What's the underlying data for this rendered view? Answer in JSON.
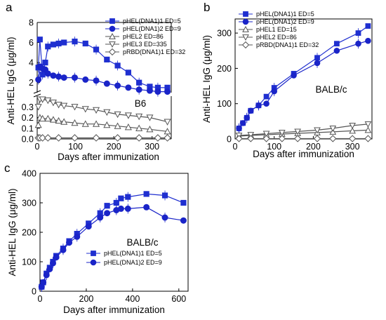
{
  "chart_data": [
    {
      "panel": "a",
      "type": "line",
      "xlabel": "Days after immunization",
      "ylabel": "Anti-HEL IgG (μg/ml)",
      "annotation": "B6",
      "xlim": [
        0,
        350
      ],
      "x_ticks": [
        0,
        100,
        200,
        300
      ],
      "broken_y_axis": true,
      "y_upper": {
        "lim": [
          1,
          8
        ],
        "ticks": [
          2,
          4,
          6,
          8
        ]
      },
      "y_lower": {
        "lim": [
          0,
          0.4
        ],
        "ticks": [
          0.0,
          0.1,
          0.2,
          0.3
        ]
      },
      "legend_position": "top-right",
      "series": [
        {
          "name": "pHEL(DNA1)1 ED=5",
          "marker": "filled-square",
          "segment": "upper",
          "x": [
            3,
            7,
            14,
            21,
            28,
            42,
            56,
            70,
            98,
            126,
            154,
            182,
            210,
            238,
            266,
            294,
            315,
            340
          ],
          "y": [
            3.5,
            6.3,
            2.8,
            4.0,
            5.6,
            5.8,
            5.9,
            6.0,
            6.1,
            5.9,
            5.3,
            4.3,
            3.7,
            3.0,
            2.0,
            1.6,
            1.5,
            1.5
          ]
        },
        {
          "name": "pHEL(DNA1)2 ED=9",
          "marker": "filled-circle",
          "segment": "upper",
          "x": [
            3,
            7,
            14,
            21,
            28,
            42,
            56,
            70,
            98,
            126,
            154,
            182,
            210,
            238,
            266,
            294,
            315,
            340
          ],
          "y": [
            2.3,
            3.6,
            3.4,
            3.3,
            2.9,
            2.7,
            2.6,
            2.5,
            2.5,
            2.3,
            2.2,
            1.9,
            1.7,
            1.5,
            1.3,
            1.2,
            1.1,
            1.1
          ]
        },
        {
          "name": "pHEL2 ED=86",
          "marker": "open-triangle",
          "segment": "lower",
          "x": [
            3,
            7,
            14,
            28,
            42,
            56,
            70,
            98,
            126,
            154,
            182,
            210,
            238,
            266,
            294,
            340
          ],
          "y": [
            0.13,
            0.2,
            0.19,
            0.19,
            0.18,
            0.17,
            0.16,
            0.15,
            0.14,
            0.14,
            0.13,
            0.12,
            0.11,
            0.1,
            0.09,
            0.07
          ]
        },
        {
          "name": "pHEL3 ED=335",
          "marker": "open-triangle-down",
          "segment": "lower",
          "x": [
            3,
            7,
            14,
            28,
            42,
            56,
            70,
            98,
            126,
            154,
            182,
            210,
            238,
            266,
            294,
            340
          ],
          "y": [
            0.3,
            0.37,
            0.37,
            0.36,
            0.34,
            0.32,
            0.31,
            0.3,
            0.28,
            0.27,
            0.25,
            0.23,
            0.22,
            0.21,
            0.2,
            0.16
          ]
        },
        {
          "name": "pRBD(DNA1)1 ED=32",
          "marker": "open-diamond",
          "segment": "lower",
          "x": [
            3,
            7,
            14,
            28,
            56,
            98,
            154,
            210,
            266,
            315,
            340
          ],
          "y": [
            0.01,
            0.01,
            0.01,
            0.01,
            0.01,
            0.01,
            0.01,
            0.01,
            0.01,
            0.01,
            0.01
          ]
        }
      ]
    },
    {
      "panel": "b",
      "type": "line",
      "xlabel": "Days after immunization",
      "ylabel": "Anti-HEL IgG (μg/ml)",
      "annotation": "BALB/c",
      "xlim": [
        0,
        350
      ],
      "x_ticks": [
        0,
        100,
        200,
        300
      ],
      "ylim": [
        0,
        340
      ],
      "y_ticks": [
        0,
        100,
        200,
        300
      ],
      "legend_position": "top-left",
      "series": [
        {
          "name": "pHEL(DNA1)1 ED=5",
          "marker": "filled-square",
          "x": [
            10,
            20,
            30,
            40,
            60,
            80,
            100,
            150,
            210,
            260,
            315,
            340
          ],
          "y": [
            30,
            45,
            60,
            80,
            95,
            120,
            145,
            185,
            230,
            270,
            300,
            320
          ]
        },
        {
          "name": "pHEL(DNA1)2 ED=9",
          "marker": "filled-circle",
          "x": [
            10,
            20,
            30,
            40,
            60,
            80,
            100,
            150,
            210,
            260,
            315,
            340
          ],
          "y": [
            30,
            45,
            60,
            80,
            95,
            100,
            135,
            180,
            215,
            250,
            270,
            278
          ]
        },
        {
          "name": "pHEL1 ED=15",
          "marker": "open-triangle",
          "x": [
            10,
            40,
            80,
            120,
            160,
            210,
            250,
            300,
            340
          ],
          "y": [
            8,
            10,
            12,
            14,
            16,
            18,
            20,
            23,
            25
          ]
        },
        {
          "name": "pHEL2 ED=86",
          "marker": "open-triangle-down",
          "x": [
            10,
            40,
            80,
            120,
            160,
            210,
            250,
            300,
            340
          ],
          "y": [
            10,
            12,
            15,
            18,
            21,
            25,
            30,
            38,
            42
          ]
        },
        {
          "name": "pRBD(DNA1)1 ED=32",
          "marker": "open-diamond",
          "x": [
            10,
            40,
            80,
            120,
            160,
            210,
            250,
            300,
            340
          ],
          "y": [
            1,
            1,
            1,
            1,
            1,
            1,
            1,
            1,
            1
          ]
        }
      ]
    },
    {
      "panel": "c",
      "type": "line",
      "xlabel": "Days after immunization",
      "ylabel": "Anti-HEL IgG (μg/ml)",
      "annotation": "BALB/c",
      "xlim": [
        0,
        640
      ],
      "x_ticks": [
        0,
        200,
        400,
        600
      ],
      "ylim": [
        0,
        400
      ],
      "y_ticks": [
        0,
        100,
        200,
        300,
        400
      ],
      "legend_position": "bottom-center",
      "series": [
        {
          "name": "pHEL(DNA1)1 ED=5",
          "marker": "filled-square",
          "x": [
            7,
            14,
            28,
            42,
            56,
            70,
            100,
            126,
            160,
            210,
            260,
            290,
            330,
            350,
            380,
            460,
            540,
            620
          ],
          "y": [
            15,
            30,
            60,
            80,
            100,
            120,
            145,
            170,
            195,
            230,
            265,
            290,
            300,
            315,
            320,
            330,
            325,
            300
          ]
        },
        {
          "name": "pHEL(DNA1)2 ED=9",
          "marker": "filled-circle",
          "x": [
            7,
            14,
            28,
            42,
            56,
            70,
            100,
            126,
            160,
            210,
            260,
            290,
            330,
            350,
            380,
            460,
            540,
            620
          ],
          "y": [
            15,
            30,
            55,
            75,
            95,
            115,
            140,
            165,
            185,
            220,
            250,
            265,
            275,
            280,
            280,
            285,
            250,
            240
          ]
        }
      ]
    }
  ],
  "panel_labels": [
    "a",
    "b",
    "c"
  ],
  "colors": {
    "series_primary": "#1f2fd0",
    "series_secondary": "#1a24c8",
    "open_markers": "#555555",
    "axis": "#000000"
  }
}
